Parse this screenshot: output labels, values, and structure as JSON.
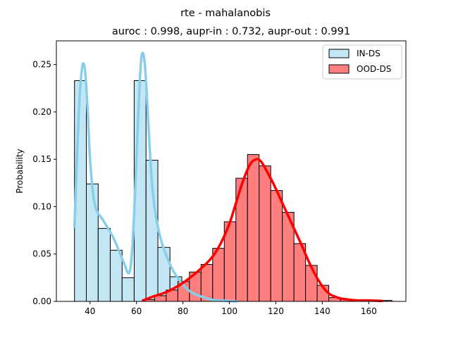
{
  "chart_data": {
    "type": "bar",
    "title": "rte - mahalanobis",
    "subtitle": "auroc : 0.998, aupr-in : 0.732, aupr-out : 0.991",
    "xlabel": "",
    "ylabel": "Probability",
    "xlim": [
      25.5,
      176
    ],
    "ylim": [
      0,
      0.275
    ],
    "xticks": [
      40,
      60,
      80,
      100,
      120,
      140,
      160
    ],
    "yticks": [
      0.0,
      0.05,
      0.1,
      0.15,
      0.2,
      0.25
    ],
    "ytick_labels": [
      "0.00",
      "0.05",
      "0.10",
      "0.15",
      "0.20",
      "0.25"
    ],
    "legend_position": "top-right",
    "series": [
      {
        "name": "IN-DS",
        "color": "#87ceeb",
        "bar_fill": "#c3e6f4",
        "bins": [
          {
            "x0": 33.3,
            "x1": 38.4,
            "y": 0.233
          },
          {
            "x0": 38.4,
            "x1": 43.5,
            "y": 0.124
          },
          {
            "x0": 43.5,
            "x1": 48.7,
            "y": 0.077
          },
          {
            "x0": 48.7,
            "x1": 53.8,
            "y": 0.054
          },
          {
            "x0": 53.8,
            "x1": 59.0,
            "y": 0.025
          },
          {
            "x0": 59.0,
            "x1": 64.1,
            "y": 0.233
          },
          {
            "x0": 64.1,
            "x1": 69.2,
            "y": 0.149
          },
          {
            "x0": 69.2,
            "x1": 74.4,
            "y": 0.057
          },
          {
            "x0": 74.4,
            "x1": 79.5,
            "y": 0.026
          },
          {
            "x0": 79.5,
            "x1": 84.7,
            "y": 0.008
          },
          {
            "x0": 84.7,
            "x1": 89.8,
            "y": 0.002
          }
        ],
        "kde": {
          "x": [
            33.3,
            34.5,
            35.5,
            36.5,
            37.2,
            38.0,
            39.0,
            40.0,
            41.5,
            43.0,
            45.0,
            47.0,
            49.0,
            51.0,
            53.0,
            55.0,
            56.3,
            57.3,
            58.3,
            59.3,
            60.3,
            61.3,
            62.0,
            62.8,
            63.6,
            64.5,
            65.5,
            66.5,
            68.0,
            70.0,
            72.0,
            75.0,
            78.0,
            81.0,
            84.0,
            88.0,
            92.0,
            97.0,
            103.0
          ],
          "y": [
            0.079,
            0.16,
            0.215,
            0.245,
            0.251,
            0.24,
            0.2,
            0.15,
            0.11,
            0.095,
            0.088,
            0.08,
            0.072,
            0.062,
            0.05,
            0.038,
            0.03,
            0.034,
            0.06,
            0.11,
            0.17,
            0.225,
            0.255,
            0.262,
            0.25,
            0.215,
            0.17,
            0.13,
            0.095,
            0.07,
            0.054,
            0.036,
            0.024,
            0.015,
            0.009,
            0.005,
            0.002,
            0.0008,
            0.0
          ]
        }
      },
      {
        "name": "OOD-DS",
        "color": "#ff0000",
        "bar_fill": "#ff7f7f",
        "bins": [
          {
            "x0": 62.8,
            "x1": 67.8,
            "y": 0.002
          },
          {
            "x0": 67.8,
            "x1": 72.8,
            "y": 0.006
          },
          {
            "x0": 72.8,
            "x1": 77.8,
            "y": 0.012
          },
          {
            "x0": 77.8,
            "x1": 82.8,
            "y": 0.021
          },
          {
            "x0": 82.8,
            "x1": 87.8,
            "y": 0.031
          },
          {
            "x0": 87.8,
            "x1": 92.8,
            "y": 0.039
          },
          {
            "x0": 92.8,
            "x1": 97.8,
            "y": 0.056
          },
          {
            "x0": 97.8,
            "x1": 102.8,
            "y": 0.084
          },
          {
            "x0": 102.8,
            "x1": 107.8,
            "y": 0.13
          },
          {
            "x0": 107.8,
            "x1": 112.8,
            "y": 0.155
          },
          {
            "x0": 112.8,
            "x1": 117.8,
            "y": 0.143
          },
          {
            "x0": 117.8,
            "x1": 122.8,
            "y": 0.117
          },
          {
            "x0": 122.8,
            "x1": 127.8,
            "y": 0.094
          },
          {
            "x0": 127.8,
            "x1": 132.8,
            "y": 0.061
          },
          {
            "x0": 132.8,
            "x1": 137.8,
            "y": 0.038
          },
          {
            "x0": 137.8,
            "x1": 142.8,
            "y": 0.017
          },
          {
            "x0": 142.8,
            "x1": 147.8,
            "y": 0.004
          },
          {
            "x0": 147.8,
            "x1": 152.8,
            "y": 0.002
          },
          {
            "x0": 152.8,
            "x1": 157.8,
            "y": 0.001
          },
          {
            "x0": 157.8,
            "x1": 162.8,
            "y": 0.001
          },
          {
            "x0": 162.8,
            "x1": 167.8,
            "y": 0.001
          },
          {
            "x0": 167.8,
            "x1": 170.0,
            "y": 0.001
          }
        ],
        "kde": {
          "x": [
            62.8,
            67.0,
            72.0,
            77.0,
            82.0,
            87.0,
            92.0,
            96.0,
            100.0,
            103.0,
            106.0,
            109.0,
            111.5,
            113.5,
            116.0,
            119.0,
            122.0,
            125.0,
            128.0,
            131.0,
            134.0,
            137.0,
            140.0,
            143.0,
            145.5,
            148.0,
            151.0,
            155.0,
            160.0,
            165.7
          ],
          "y": [
            0.001,
            0.005,
            0.009,
            0.015,
            0.023,
            0.033,
            0.045,
            0.06,
            0.082,
            0.105,
            0.128,
            0.145,
            0.15,
            0.148,
            0.138,
            0.124,
            0.108,
            0.092,
            0.076,
            0.06,
            0.043,
            0.028,
            0.016,
            0.008,
            0.005,
            0.003,
            0.002,
            0.001,
            0.001,
            0.0005
          ]
        }
      }
    ]
  }
}
